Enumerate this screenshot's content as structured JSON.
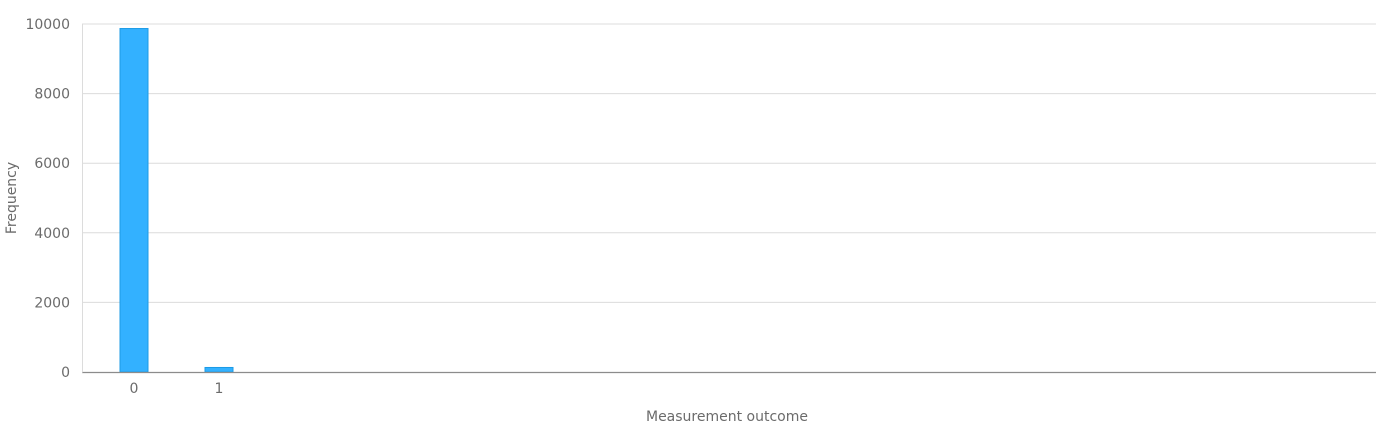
{
  "chart_data": {
    "type": "bar",
    "title": "",
    "xlabel": "Measurement outcome",
    "ylabel": "Frequency",
    "categories": [
      "0",
      "1"
    ],
    "values": [
      9870,
      130
    ],
    "ylim": [
      0,
      10000
    ],
    "yticks": [
      0,
      2000,
      4000,
      6000,
      8000,
      10000
    ],
    "grid": true,
    "legend": "none"
  },
  "colors": {
    "bar": "#33b1ff",
    "bar_edge": "#1c9be6",
    "grid": "#dcdcdc",
    "axis": "#8c8c8c",
    "text": "#6b6b6b"
  }
}
